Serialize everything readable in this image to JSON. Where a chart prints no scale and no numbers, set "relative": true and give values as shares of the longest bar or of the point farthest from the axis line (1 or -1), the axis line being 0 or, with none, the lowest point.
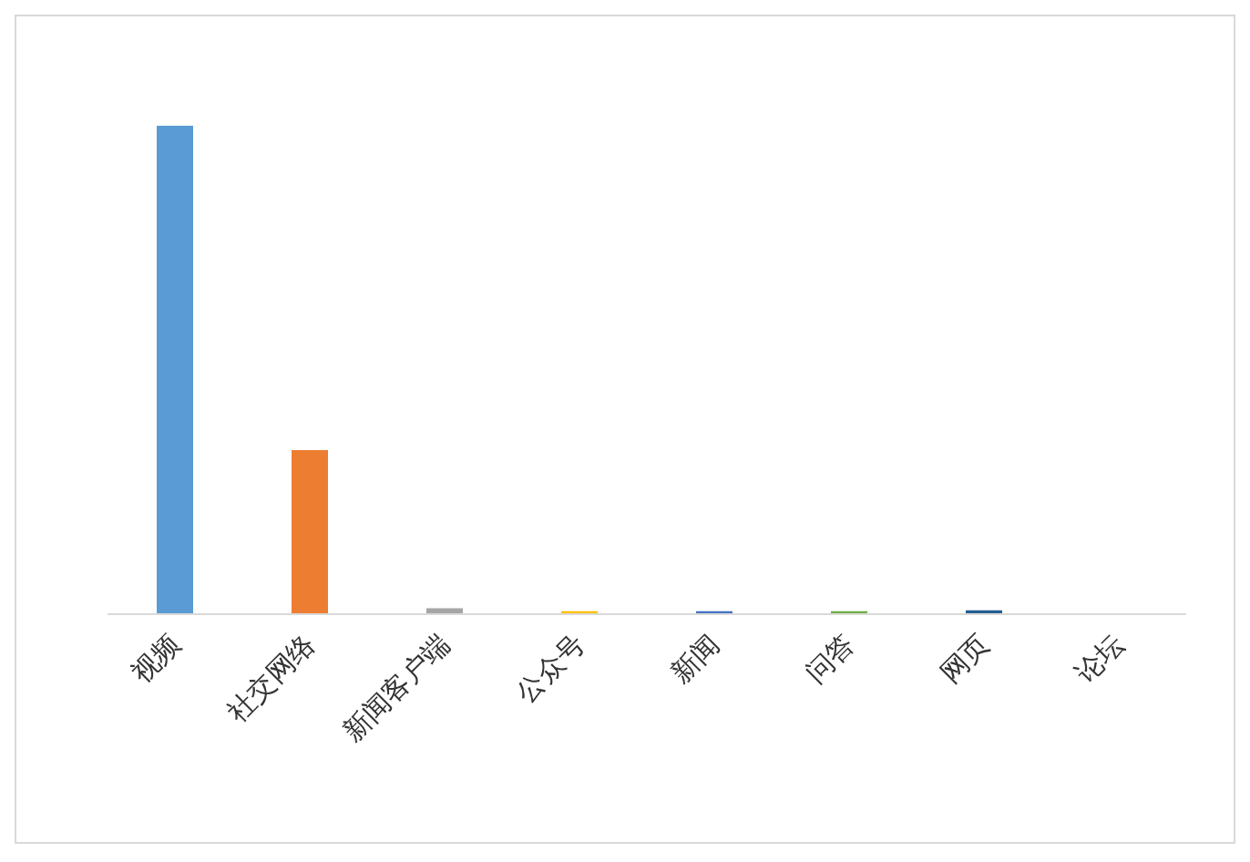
{
  "chart_data": {
    "type": "bar",
    "relative": true,
    "categories": [
      "视频",
      "社交网络",
      "新闻客户端",
      "公众号",
      "新闻",
      "问答",
      "网页",
      "论坛"
    ],
    "values": [
      1,
      0.336,
      0.012,
      0.006,
      0.006,
      0.006,
      0.008,
      0
    ],
    "colors": [
      "#5b9bd5",
      "#ed7d31",
      "#a5a5a5",
      "#ffc000",
      "#4472c4",
      "#70ad47",
      "#255e91",
      "#9e480e"
    ],
    "grid": false,
    "legend": false
  }
}
